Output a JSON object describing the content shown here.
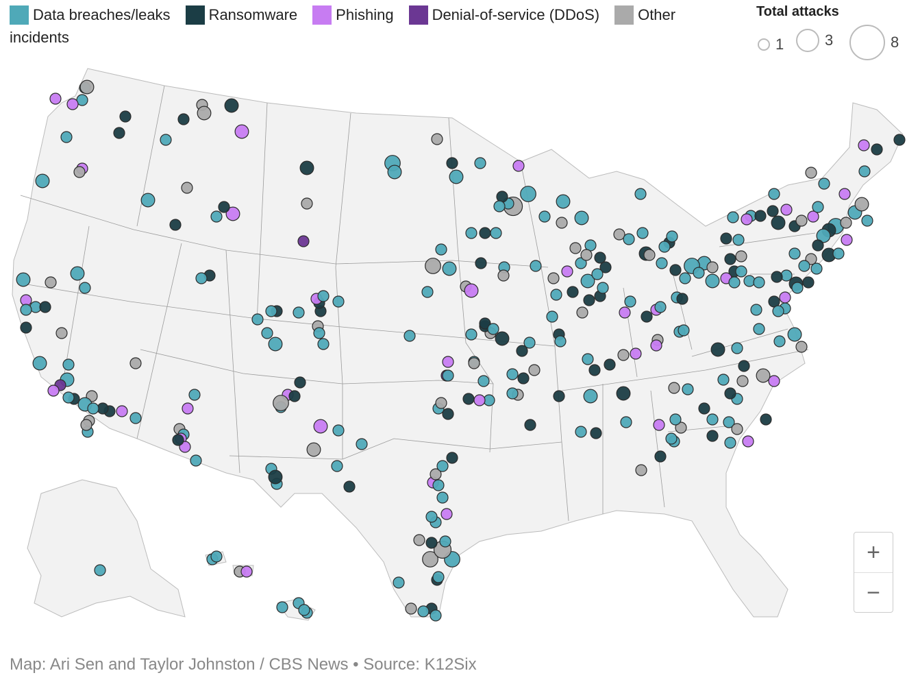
{
  "legend": {
    "items": [
      {
        "key": "breach",
        "label": "Data breaches/leaks",
        "color": "#4fa9b8"
      },
      {
        "key": "ransom",
        "label": "Ransomware",
        "color": "#1b3d45"
      },
      {
        "key": "phish",
        "label": "Phishing",
        "color": "#c77cf2"
      },
      {
        "key": "ddos",
        "label": "Denial-of-service (DDoS)",
        "color": "#6b3793"
      },
      {
        "key": "other",
        "label": "Other",
        "color": "#aaaaaa"
      }
    ],
    "continuation": "incidents"
  },
  "size_legend": {
    "title": "Total attacks",
    "values": [
      "1",
      "3",
      "8"
    ]
  },
  "zoom": {
    "plus": "+",
    "minus": "−"
  },
  "credit": "Map: Ari Sen and Taylor Johnston / CBS News • Source: K12Six",
  "map_colors": {
    "land": "#f2f2f2",
    "border": "#9a9a9a",
    "stroke": "#2b2b2b"
  },
  "incidents": [
    [
      "breach",
      1
    ],
    [
      "phish",
      1
    ],
    [
      "other",
      2
    ],
    [
      "breach",
      1
    ],
    [
      "phish",
      1
    ],
    [
      "ransom",
      1
    ],
    [
      "ransom",
      1
    ],
    [
      "breach",
      1
    ],
    [
      "ransom",
      1
    ],
    [
      "other",
      1
    ],
    [
      "phish",
      2
    ],
    [
      "other",
      2
    ],
    [
      "breach",
      1
    ],
    [
      "phish",
      1
    ],
    [
      "ransom",
      2
    ],
    [
      "breach",
      2
    ],
    [
      "other",
      1
    ],
    [
      "ransom",
      1
    ],
    [
      "breach",
      2
    ],
    [
      "phish",
      2
    ],
    [
      "ransom",
      1
    ],
    [
      "other",
      1
    ],
    [
      "ddos",
      1
    ],
    [
      "breach",
      1
    ],
    [
      "other",
      1
    ],
    [
      "ransom",
      2
    ],
    [
      "breach",
      3
    ],
    [
      "other",
      1
    ],
    [
      "breach",
      2
    ],
    [
      "breach",
      2
    ],
    [
      "ransom",
      1
    ],
    [
      "breach",
      1
    ],
    [
      "phish",
      1
    ],
    [
      "breach",
      3
    ],
    [
      "other",
      5
    ],
    [
      "breach",
      1
    ],
    [
      "breach",
      2
    ],
    [
      "ransom",
      1
    ],
    [
      "breach",
      1
    ],
    [
      "other",
      1
    ],
    [
      "breach",
      2
    ],
    [
      "breach",
      1
    ],
    [
      "breach",
      1
    ],
    [
      "other",
      1
    ],
    [
      "breach",
      1
    ],
    [
      "breach",
      1
    ],
    [
      "ransom",
      1
    ],
    [
      "breach",
      1
    ],
    [
      "breach",
      1
    ],
    [
      "ransom",
      2
    ],
    [
      "breach",
      1
    ],
    [
      "other",
      1
    ],
    [
      "breach",
      1
    ],
    [
      "other",
      1
    ],
    [
      "breach",
      1
    ],
    [
      "phish",
      1
    ],
    [
      "breach",
      1
    ],
    [
      "ransom",
      1
    ],
    [
      "phish",
      1
    ],
    [
      "breach",
      1
    ],
    [
      "ransom",
      1
    ],
    [
      "breach",
      3
    ],
    [
      "other",
      1
    ],
    [
      "breach",
      1
    ],
    [
      "phish",
      1
    ],
    [
      "ransom",
      1
    ],
    [
      "ransom",
      1
    ],
    [
      "phish",
      1
    ],
    [
      "breach",
      1
    ],
    [
      "ransom",
      1
    ],
    [
      "breach",
      1
    ],
    [
      "ransom",
      2
    ],
    [
      "ransom",
      1
    ],
    [
      "other",
      1
    ],
    [
      "phish",
      1
    ],
    [
      "breach",
      1
    ],
    [
      "ransom",
      2
    ],
    [
      "breach",
      2
    ],
    [
      "other",
      2
    ],
    [
      "phish",
      1
    ],
    [
      "breach",
      2
    ],
    [
      "ransom",
      1
    ],
    [
      "ransom",
      2
    ],
    [
      "breach",
      1
    ],
    [
      "breach",
      1
    ],
    [
      "other",
      1
    ],
    [
      "breach",
      1
    ],
    [
      "breach",
      1
    ],
    [
      "ransom",
      1
    ],
    [
      "ransom",
      2
    ],
    [
      "ransom",
      1
    ],
    [
      "breach",
      1
    ],
    [
      "ransom",
      1
    ],
    [
      "other",
      1
    ],
    [
      "phish",
      1
    ],
    [
      "breach",
      2
    ],
    [
      "breach",
      2
    ],
    [
      "breach",
      3
    ],
    [
      "ransom",
      1
    ],
    [
      "breach",
      1
    ],
    [
      "breach",
      1
    ],
    [
      "other",
      1
    ],
    [
      "ransom",
      1
    ],
    [
      "breach",
      1
    ],
    [
      "breach",
      1
    ],
    [
      "breach",
      1
    ],
    [
      "breach",
      1
    ],
    [
      "ransom",
      1
    ],
    [
      "breach",
      1
    ],
    [
      "breach",
      1
    ],
    [
      "phish",
      1
    ],
    [
      "breach",
      1
    ],
    [
      "other",
      1
    ],
    [
      "breach",
      2
    ],
    [
      "breach",
      1
    ],
    [
      "breach",
      1
    ],
    [
      "breach",
      1
    ],
    [
      "breach",
      1
    ],
    [
      "ransom",
      2
    ],
    [
      "ransom",
      1
    ],
    [
      "other",
      1
    ],
    [
      "breach",
      1
    ],
    [
      "breach",
      1
    ],
    [
      "ransom",
      1
    ],
    [
      "ransom",
      1
    ],
    [
      "breach",
      1
    ],
    [
      "breach",
      1
    ],
    [
      "other",
      1
    ],
    [
      "phish",
      1
    ],
    [
      "breach",
      1
    ],
    [
      "ransom",
      1
    ],
    [
      "other",
      2
    ],
    [
      "phish",
      1
    ],
    [
      "ransom",
      1
    ],
    [
      "breach",
      1
    ],
    [
      "other",
      1
    ],
    [
      "other",
      1
    ],
    [
      "breach",
      1
    ],
    [
      "phish",
      1
    ],
    [
      "breach",
      1
    ],
    [
      "breach",
      1
    ],
    [
      "ransom",
      1
    ],
    [
      "other",
      1
    ],
    [
      "breach",
      1
    ],
    [
      "ransom",
      2
    ],
    [
      "breach",
      2
    ],
    [
      "ransom",
      1
    ],
    [
      "breach",
      1
    ],
    [
      "ransom",
      1
    ],
    [
      "ransom",
      1
    ],
    [
      "other",
      1
    ],
    [
      "breach",
      1
    ],
    [
      "breach",
      1
    ],
    [
      "breach",
      1
    ],
    [
      "phish",
      1
    ],
    [
      "ransom",
      1
    ],
    [
      "breach",
      1
    ],
    [
      "ransom",
      1
    ],
    [
      "other",
      1
    ],
    [
      "ddos",
      1
    ],
    [
      "breach",
      1
    ],
    [
      "other",
      1
    ],
    [
      "ransom",
      1
    ],
    [
      "ransom",
      2
    ],
    [
      "breach",
      1
    ],
    [
      "ransom",
      1
    ],
    [
      "breach",
      1
    ],
    [
      "other",
      1
    ],
    [
      "ransom",
      1
    ],
    [
      "ransom",
      1
    ],
    [
      "breach",
      1
    ],
    [
      "breach",
      1
    ],
    [
      "ransom",
      1
    ],
    [
      "ransom",
      1
    ],
    [
      "other",
      1
    ],
    [
      "phish",
      1
    ],
    [
      "other",
      1
    ],
    [
      "phish",
      1
    ],
    [
      "breach",
      1
    ],
    [
      "breach",
      1
    ],
    [
      "phish",
      1
    ],
    [
      "breach",
      1
    ],
    [
      "ransom",
      1
    ],
    [
      "breach",
      1
    ],
    [
      "ransom",
      1
    ],
    [
      "phish",
      1
    ],
    [
      "breach",
      1
    ],
    [
      "ransom",
      1
    ],
    [
      "ransom",
      1
    ],
    [
      "other",
      1
    ],
    [
      "breach",
      1
    ],
    [
      "breach",
      1
    ],
    [
      "ransom",
      1
    ],
    [
      "breach",
      2
    ],
    [
      "ransom",
      1
    ],
    [
      "ransom",
      1
    ],
    [
      "breach",
      1
    ],
    [
      "phish",
      1
    ],
    [
      "other",
      1
    ],
    [
      "breach",
      1
    ],
    [
      "other",
      1
    ],
    [
      "breach",
      1
    ],
    [
      "breach",
      1
    ],
    [
      "other",
      1
    ],
    [
      "breach",
      1
    ],
    [
      "breach",
      1
    ],
    [
      "other",
      1
    ],
    [
      "ransom",
      1
    ],
    [
      "breach",
      1
    ],
    [
      "ransom",
      1
    ],
    [
      "breach",
      1
    ],
    [
      "other",
      1
    ],
    [
      "phish",
      2
    ],
    [
      "breach",
      1
    ],
    [
      "other",
      3
    ],
    [
      "breach",
      1
    ],
    [
      "breach",
      2
    ],
    [
      "breach",
      1
    ],
    [
      "breach",
      1
    ],
    [
      "ransom",
      1
    ],
    [
      "breach",
      1
    ],
    [
      "breach",
      1
    ],
    [
      "phish",
      1
    ],
    [
      "other",
      1
    ],
    [
      "breach",
      1
    ],
    [
      "ransom",
      1
    ],
    [
      "ransom",
      1
    ],
    [
      "other",
      1
    ],
    [
      "breach",
      1
    ],
    [
      "breach",
      1
    ],
    [
      "phish",
      1
    ],
    [
      "breach",
      1
    ],
    [
      "breach",
      1
    ],
    [
      "ransom",
      1
    ],
    [
      "breach",
      1
    ],
    [
      "breach",
      1
    ],
    [
      "breach",
      1
    ],
    [
      "breach",
      2
    ],
    [
      "ransom",
      1
    ],
    [
      "breach",
      1
    ],
    [
      "breach",
      1
    ],
    [
      "phish",
      1
    ],
    [
      "ransom",
      1
    ],
    [
      "breach",
      1
    ],
    [
      "phish",
      1
    ],
    [
      "ransom",
      1
    ],
    [
      "other",
      3
    ],
    [
      "phish",
      2
    ],
    [
      "breach",
      1
    ],
    [
      "breach",
      1
    ],
    [
      "other",
      2
    ],
    [
      "breach",
      1
    ],
    [
      "ransom",
      1
    ],
    [
      "breach",
      1
    ],
    [
      "breach",
      1
    ],
    [
      "ransom",
      2
    ],
    [
      "other",
      1
    ],
    [
      "breach",
      1
    ],
    [
      "phish",
      1
    ],
    [
      "phish",
      1
    ],
    [
      "breach",
      1
    ],
    [
      "ransom",
      1
    ],
    [
      "other",
      1
    ],
    [
      "breach",
      2
    ],
    [
      "breach",
      1
    ],
    [
      "other",
      1
    ],
    [
      "breach",
      1
    ],
    [
      "breach",
      2
    ],
    [
      "breach",
      2
    ],
    [
      "ransom",
      1
    ],
    [
      "breach",
      1
    ],
    [
      "breach",
      2
    ],
    [
      "other",
      1
    ],
    [
      "phish",
      1
    ],
    [
      "breach",
      1
    ],
    [
      "ransom",
      1
    ],
    [
      "ddos",
      1
    ],
    [
      "phish",
      1
    ],
    [
      "other",
      1
    ],
    [
      "breach",
      2
    ],
    [
      "ransom",
      1
    ],
    [
      "breach",
      1
    ],
    [
      "other",
      1
    ],
    [
      "breach",
      1
    ],
    [
      "ransom",
      1
    ],
    [
      "phish",
      1
    ],
    [
      "breach",
      1
    ],
    [
      "ransom",
      1
    ],
    [
      "other",
      1
    ],
    [
      "breach",
      1
    ],
    [
      "breach",
      1
    ],
    [
      "breach",
      1
    ],
    [
      "breach",
      1
    ],
    [
      "other",
      1
    ],
    [
      "phish",
      1
    ],
    [
      "breach",
      1
    ],
    [
      "breach",
      1
    ],
    [
      "breach",
      1
    ],
    [
      "breach",
      1
    ],
    [
      "breach",
      1
    ],
    [
      "other",
      1
    ],
    [
      "ransom",
      1
    ],
    [
      "breach",
      1
    ],
    [
      "breach",
      1
    ],
    [
      "ransom",
      1
    ],
    [
      "breach",
      1
    ],
    [
      "other",
      3
    ],
    [
      "breach",
      3
    ],
    [
      "other",
      4
    ],
    [
      "ransom",
      1
    ],
    [
      "other",
      1
    ],
    [
      "breach",
      1
    ],
    [
      "breach",
      1
    ],
    [
      "breach",
      1
    ],
    [
      "phish",
      1
    ],
    [
      "phish",
      1
    ],
    [
      "breach",
      1
    ],
    [
      "breach",
      1
    ],
    [
      "other",
      1
    ],
    [
      "breach",
      1
    ],
    [
      "ransom",
      1
    ]
  ]
}
